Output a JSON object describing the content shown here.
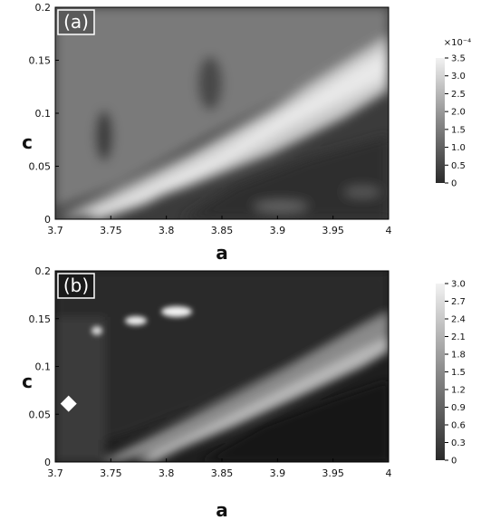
{
  "chart_data": [
    {
      "type": "heatmap",
      "panel_label": "(a)",
      "xlabel": "a",
      "ylabel": "c",
      "xlim": [
        3.7,
        4.0
      ],
      "ylim": [
        0,
        0.2
      ],
      "x_ticks": [
        "3.7",
        "3.75",
        "3.8",
        "3.85",
        "3.9",
        "3.95",
        "4"
      ],
      "y_ticks": [
        "0",
        "0.05",
        "0.1",
        "0.15",
        "0.2"
      ],
      "colorbar": {
        "exponent": "×10⁻⁴",
        "range": [
          0,
          3.5
        ],
        "ticks": [
          "0",
          "0.5",
          "1.0",
          "1.5",
          "2.0",
          "2.5",
          "3.0",
          "3.5"
        ],
        "colormap": "grayscale"
      },
      "features": [
        {
          "kind": "ridge",
          "a_start": 3.73,
          "c_start": 0.02,
          "a_end": 4.0,
          "c_end": 0.19,
          "level": 3.0
        },
        {
          "kind": "dark_dip",
          "a": 3.74,
          "c": 0.075,
          "level": 1.0
        },
        {
          "kind": "dark_dip",
          "a": 3.83,
          "c": 0.12,
          "level": 1.2
        }
      ]
    },
    {
      "type": "heatmap",
      "panel_label": "(b)",
      "xlabel": "a",
      "ylabel": "c",
      "xlim": [
        3.7,
        4.0
      ],
      "ylim": [
        0,
        0.2
      ],
      "x_ticks": [
        "3.7",
        "3.75",
        "3.8",
        "3.85",
        "3.9",
        "3.95",
        "4"
      ],
      "y_ticks": [
        "0",
        "0.05",
        "0.1",
        "0.15",
        "0.2"
      ],
      "colorbar": {
        "range": [
          0,
          3.0
        ],
        "ticks": [
          "0",
          "0.3",
          "0.6",
          "0.9",
          "1.2",
          "1.5",
          "1.8",
          "2.1",
          "2.4",
          "2.7",
          "3.0"
        ],
        "colormap": "grayscale"
      },
      "features": [
        {
          "kind": "ridge",
          "a_start": 3.75,
          "c_start": 0.035,
          "a_end": 4.0,
          "c_end": 0.135,
          "level": 2.7
        },
        {
          "kind": "bright_spot",
          "a": 3.73,
          "c": 0.145,
          "level": 2.4
        },
        {
          "kind": "bright_spot",
          "a": 3.765,
          "c": 0.157,
          "level": 2.7
        },
        {
          "kind": "bright_spot",
          "a": 3.805,
          "c": 0.167,
          "level": 2.7
        }
      ],
      "markers": [
        {
          "shape": "diamond",
          "a": 3.712,
          "c": 0.061,
          "color": "#ffffff"
        }
      ]
    }
  ]
}
